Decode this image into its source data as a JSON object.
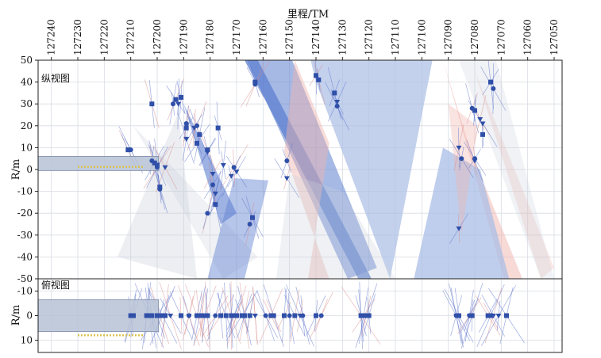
{
  "chart_data": {
    "type": "scatter",
    "title": "",
    "xlabel": "里程/TM",
    "x_axis": {
      "range": [
        127245,
        127047
      ],
      "ticks": [
        127240,
        127230,
        127220,
        127210,
        127200,
        127190,
        127180,
        127170,
        127160,
        127150,
        127140,
        127130,
        127120,
        127110,
        127100,
        127090,
        127080,
        127070,
        127060,
        127050
      ]
    },
    "colors": {
      "marker": "#2f4fa8",
      "blue_fill": "#5d7fd0",
      "light_blue_fill": "#a9bde6",
      "gray_fill": "#c9cfdb",
      "pink_fill": "#f0b3ad",
      "yellow": "#d9c24c",
      "tunnel": "#b7c2d6"
    },
    "panels": [
      {
        "id": "profile",
        "label": "纵视图",
        "ylabel": "R/m",
        "ylim": [
          -50,
          50
        ],
        "yticks": [
          50,
          40,
          30,
          20,
          10,
          0,
          -10,
          -20,
          -30,
          -40,
          -50
        ],
        "tunnel_band": {
          "x": [
            127245,
            127199.5
          ],
          "y": [
            -0.5,
            6
          ]
        },
        "excavation_face": {
          "x": [
            127230,
            127205
          ],
          "y": 1.2
        },
        "zones": [
          {
            "name": "gray-zone-1",
            "color": "gray",
            "opacity": 0.35,
            "points": [
              [
                127215,
                -40
              ],
              [
                127192,
                26
              ],
              [
                127185,
                -50
              ]
            ]
          },
          {
            "name": "gray-zone-2",
            "color": "gray",
            "opacity": 0.3,
            "points": [
              [
                127209,
                20
              ],
              [
                127175,
                -50
              ],
              [
                127162,
                -40
              ]
            ]
          },
          {
            "name": "blue-zone-1",
            "color": "blue",
            "opacity": 0.6,
            "points": [
              [
                127190,
                30
              ],
              [
                127176,
                -25
              ],
              [
                127170,
                -20
              ]
            ]
          },
          {
            "name": "blue-zone-2",
            "color": "blue",
            "opacity": 0.45,
            "points": [
              [
                127181,
                -50
              ],
              [
                127171,
                -4
              ],
              [
                127158,
                -5
              ],
              [
                127167,
                -50
              ]
            ]
          },
          {
            "name": "blue-band-1",
            "color": "blue",
            "opacity": 0.75,
            "points": [
              [
                127167,
                50
              ],
              [
                127162,
                50
              ],
              [
                127119,
                -50
              ],
              [
                127124,
                -50
              ]
            ]
          },
          {
            "name": "blue-fan-1",
            "color": "blue",
            "opacity": 0.55,
            "points": [
              [
                127166,
                50
              ],
              [
                127149,
                50
              ],
              [
                127117,
                -45
              ],
              [
                127128,
                -50
              ]
            ]
          },
          {
            "name": "light-blue-fan",
            "color": "light_blue",
            "opacity": 0.7,
            "points": [
              [
                127142,
                50
              ],
              [
                127096,
                50
              ],
              [
                127112,
                -50
              ],
              [
                127140,
                40
              ]
            ]
          },
          {
            "name": "pink-fan-1",
            "color": "pink",
            "opacity": 0.45,
            "points": [
              [
                127152,
                8
              ],
              [
                127148,
                50
              ],
              [
                127135,
                12
              ],
              [
                127143,
                -50
              ],
              [
                127135,
                -50
              ]
            ]
          },
          {
            "name": "gray-zone-3",
            "color": "gray",
            "opacity": 0.3,
            "points": [
              [
                127155,
                -50
              ],
              [
                127150,
                -2
              ],
              [
                127130,
                -10
              ],
              [
                127110,
                -50
              ]
            ]
          },
          {
            "name": "pink-fan-2",
            "color": "pink",
            "opacity": 0.5,
            "points": [
              [
                127092,
                50
              ],
              [
                127069,
                -50
              ],
              [
                127062,
                -50
              ],
              [
                127082,
                10
              ]
            ]
          },
          {
            "name": "pink-fan-3",
            "color": "pink",
            "opacity": 0.3,
            "points": [
              [
                127080,
                45
              ],
              [
                127050,
                -45
              ],
              [
                127055,
                -50
              ]
            ]
          },
          {
            "name": "light-blue-fan-2",
            "color": "light_blue",
            "opacity": 0.75,
            "points": [
              [
                127092,
                10
              ],
              [
                127078,
                0
              ],
              [
                127067,
                -50
              ],
              [
                127103,
                -50
              ]
            ]
          },
          {
            "name": "pink-zone-4",
            "color": "pink",
            "opacity": 0.35,
            "points": [
              [
                127090,
                30
              ],
              [
                127079,
                20
              ],
              [
                127085,
                -30
              ]
            ]
          },
          {
            "name": "gray-zone-4",
            "color": "gray",
            "opacity": 0.28,
            "points": [
              [
                127086,
                50
              ],
              [
                127055,
                -50
              ],
              [
                127050,
                -50
              ],
              [
                127072,
                50
              ]
            ]
          }
        ],
        "series": [
          {
            "name": "circles",
            "marker": "circle",
            "points": [
              [
                127210,
                9
              ],
              [
                127202,
                4
              ],
              [
                127200,
                1
              ],
              [
                127199,
                -9
              ],
              [
                127194,
                30
              ],
              [
                127189,
                21
              ],
              [
                127185,
                20
              ],
              [
                127181,
                -20
              ],
              [
                127179,
                -7
              ],
              [
                127171,
                1
              ],
              [
                127165,
                -25
              ],
              [
                127163,
                39
              ],
              [
                127151,
                4
              ],
              [
                127132,
                29
              ],
              [
                127085,
                5
              ],
              [
                127081,
                28
              ],
              [
                127080,
                5
              ],
              [
                127073,
                37
              ]
            ]
          },
          {
            "name": "squares",
            "marker": "square",
            "points": [
              [
                127211,
                9
              ],
              [
                127202,
                30
              ],
              [
                127201,
                3
              ],
              [
                127200,
                2
              ],
              [
                127199,
                -8
              ],
              [
                127193,
                32
              ],
              [
                127191,
                33
              ],
              [
                127189,
                19
              ],
              [
                127185,
                12
              ],
              [
                127184,
                16
              ],
              [
                127181,
                9
              ],
              [
                127178,
                -16
              ],
              [
                127177,
                19
              ],
              [
                127164,
                -22
              ],
              [
                127163,
                40
              ],
              [
                127140,
                43
              ],
              [
                127139,
                41
              ],
              [
                127133,
                35
              ],
              [
                127080,
                27
              ],
              [
                127077,
                16
              ],
              [
                127074,
                40
              ]
            ]
          },
          {
            "name": "triangles",
            "marker": "triangle",
            "points": [
              [
                127197,
                1
              ],
              [
                127192,
                30
              ],
              [
                127189,
                14
              ],
              [
                127186,
                19
              ],
              [
                127181,
                8
              ],
              [
                127179,
                -2
              ],
              [
                127178,
                -11
              ],
              [
                127175,
                2
              ],
              [
                127172,
                -3
              ],
              [
                127170,
                -1
              ],
              [
                127151,
                -4
              ],
              [
                127132,
                31
              ],
              [
                127086,
                10
              ],
              [
                127086,
                -27
              ],
              [
                127080,
                4
              ],
              [
                127078,
                23
              ],
              [
                127077,
                21
              ]
            ]
          }
        ]
      },
      {
        "id": "plan",
        "label": "俯视图",
        "ylabel": "R/m",
        "ylim": [
          -15,
          15
        ],
        "yticks": [
          -10,
          0,
          10
        ],
        "tunnel_band": {
          "x": [
            127245,
            127199.5
          ],
          "y": [
            -6.5,
            6.5
          ]
        },
        "excavation_face": {
          "x": [
            127230,
            127205
          ],
          "y": 8
        },
        "series": [
          {
            "name": "circles",
            "marker": "circle",
            "points": [
              [
                127203,
                0
              ],
              [
                127198,
                0
              ],
              [
                127188,
                0
              ],
              [
                127184,
                0
              ],
              [
                127178,
                0
              ],
              [
                127171,
                0
              ],
              [
                127159,
                0
              ],
              [
                127150,
                0
              ],
              [
                127145,
                0
              ],
              [
                127138,
                0
              ],
              [
                127087,
                0
              ],
              [
                127082,
                0
              ]
            ]
          },
          {
            "name": "squares",
            "marker": "square",
            "points": [
              [
                127210,
                0
              ],
              [
                127209,
                0
              ],
              [
                127204,
                0
              ],
              [
                127202,
                0
              ],
              [
                127200,
                0
              ],
              [
                127199,
                0
              ],
              [
                127197,
                0
              ],
              [
                127191,
                0
              ],
              [
                127185,
                0
              ],
              [
                127183,
                0
              ],
              [
                127181,
                0
              ],
              [
                127176,
                0
              ],
              [
                127174,
                0
              ],
              [
                127172,
                0
              ],
              [
                127170,
                0
              ],
              [
                127168,
                0
              ],
              [
                127167,
                0
              ],
              [
                127165,
                0
              ],
              [
                127157,
                0
              ],
              [
                127156,
                0
              ],
              [
                127152,
                0
              ],
              [
                127148,
                0
              ],
              [
                127140,
                0
              ],
              [
                127123,
                0
              ],
              [
                127122,
                0
              ],
              [
                127121,
                0
              ],
              [
                127120,
                0
              ],
              [
                127086,
                0
              ],
              [
                127081,
                0
              ],
              [
                127075,
                0
              ],
              [
                127074,
                0
              ],
              [
                127068,
                0
              ]
            ]
          },
          {
            "name": "triangles",
            "marker": "triangle",
            "points": [
              [
                127195,
                0
              ],
              [
                127188,
                0
              ],
              [
                127182,
                0
              ],
              [
                127172,
                0
              ],
              [
                127167,
                0
              ],
              [
                127163,
                0
              ],
              [
                127146,
                0
              ],
              [
                127123,
                0
              ],
              [
                127087,
                0
              ],
              [
                127082,
                0
              ],
              [
                127073,
                0
              ],
              [
                127071,
                0
              ]
            ]
          }
        ]
      }
    ]
  }
}
